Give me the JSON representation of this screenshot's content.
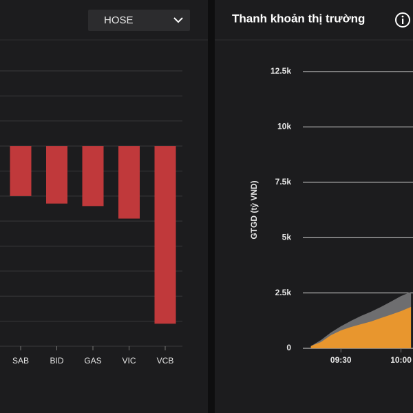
{
  "exchange_select": "HOSE",
  "chart_data": [
    {
      "type": "bar",
      "categories": [
        "SAB",
        "BID",
        "GAS",
        "VIC",
        "VCB"
      ],
      "values": [
        -2.0,
        -2.3,
        -2.4,
        -2.9,
        -7.1
      ],
      "color": "#c0393b",
      "ylim": [
        -8,
        3
      ],
      "grid_values": [
        -8,
        -7,
        -6,
        -5,
        -4,
        -3,
        -2,
        -1,
        0,
        1,
        2,
        3
      ],
      "grid": true
    },
    {
      "type": "area",
      "title": "Thanh khoản thị trường",
      "y_label": "GTGD (tỷ VND)",
      "x": [
        "09:15",
        "09:20",
        "09:25",
        "09:30",
        "09:35",
        "09:40",
        "09:45",
        "09:50",
        "09:55",
        "10:00",
        "10:05"
      ],
      "xlim": [
        "09:11",
        "10:06"
      ],
      "xticks": [
        "09:30",
        "10:00"
      ],
      "ylim": [
        0,
        12500
      ],
      "yticks": [
        0,
        {
          "value": 2500,
          "label": "2.5k"
        },
        {
          "value": 5000,
          "label": "5k"
        },
        {
          "value": 7500,
          "label": "7.5k"
        },
        {
          "value": 10000,
          "label": "10k"
        },
        {
          "value": 12500,
          "label": "12.5k"
        }
      ],
      "grid": true,
      "series": [
        {
          "color": "#6e6e70",
          "values": [
            100,
            370,
            715,
            995,
            1240,
            1460,
            1650,
            1870,
            2110,
            2360,
            2550
          ]
        },
        {
          "color": "#e8962e",
          "values": [
            100,
            280,
            590,
            810,
            960,
            1090,
            1210,
            1370,
            1520,
            1680,
            1870
          ]
        }
      ]
    }
  ]
}
